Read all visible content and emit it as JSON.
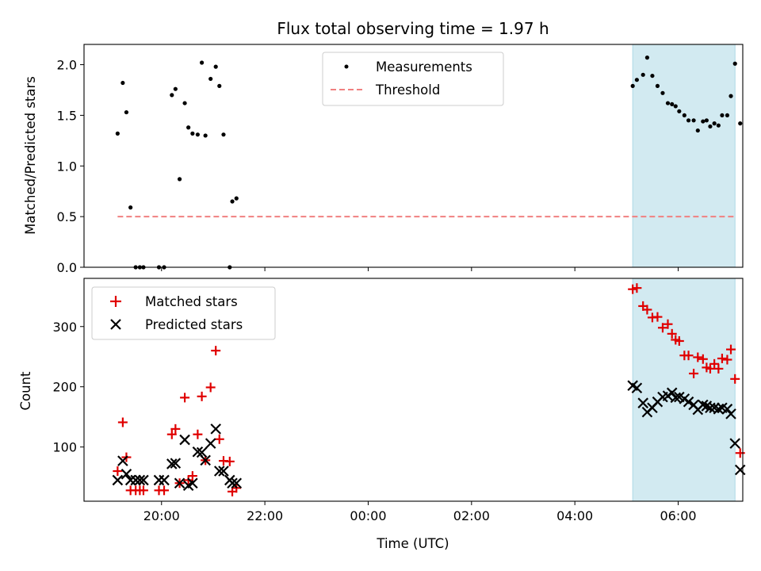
{
  "figure": {
    "title": "Flux total observing time = 1.97 h",
    "xlabel": "Time (UTC)",
    "x_ticks": [
      "20:00",
      "22:00",
      "00:00",
      "02:00",
      "04:00",
      "06:00"
    ]
  },
  "colors": {
    "measurements": "#000000",
    "threshold": "#f08080",
    "matched": "#e00000",
    "predicted": "#000000",
    "highlight": "#add8e6"
  },
  "chart_data": [
    {
      "type": "scatter",
      "title": "Flux total observing time = 1.97 h",
      "xlabel": "",
      "ylabel": "Matched/Predicted stars",
      "x_unit": "hours since 20:00 UTC (axis labels show clock time)",
      "xlim": [
        -1.5,
        11.25
      ],
      "ylim": [
        0,
        2.2
      ],
      "y_ticks": [
        "0.0",
        "0.5",
        "1.0",
        "1.5",
        "2.0"
      ],
      "legend": {
        "position": "upper-center",
        "entries": [
          "Measurements",
          "Threshold"
        ]
      },
      "highlight_span": [
        9.12,
        11.1
      ],
      "threshold": {
        "name": "Threshold",
        "value": 0.5,
        "x_range": [
          -0.85,
          11.1
        ]
      },
      "series": [
        {
          "name": "Measurements",
          "x": [
            -0.85,
            -0.75,
            -0.68,
            -0.6,
            -0.5,
            -0.42,
            -0.35,
            -0.05,
            0.05,
            0.2,
            0.27,
            0.35,
            0.45,
            0.52,
            0.6,
            0.7,
            0.78,
            0.85,
            0.95,
            1.05,
            1.12,
            1.2,
            1.32,
            1.37,
            1.45,
            9.12,
            9.2,
            9.32,
            9.4,
            9.5,
            9.6,
            9.7,
            9.8,
            9.88,
            9.95,
            10.02,
            10.12,
            10.2,
            10.3,
            10.38,
            10.48,
            10.55,
            10.62,
            10.7,
            10.78,
            10.85,
            10.95,
            11.02,
            11.1
          ],
          "y": [
            1.32,
            1.82,
            1.53,
            0.59,
            0.0,
            0.0,
            0.0,
            0.0,
            0.0,
            1.7,
            1.76,
            0.87,
            1.62,
            1.38,
            1.32,
            1.31,
            2.02,
            1.3,
            1.86,
            1.98,
            1.79,
            1.31,
            0.0,
            0.65,
            0.68,
            1.79,
            1.85,
            1.9,
            2.07,
            1.89,
            1.79,
            1.72,
            1.62,
            1.61,
            1.59,
            1.54,
            1.5,
            1.45,
            1.45,
            1.35,
            1.44,
            1.45,
            1.39,
            1.42,
            1.4,
            1.5,
            1.5,
            1.69,
            2.01
          ]
        }
      ],
      "extra_points": {
        "x": [
          11.2
        ],
        "y": [
          1.42
        ]
      }
    },
    {
      "type": "scatter",
      "xlabel": "Time (UTC)",
      "ylabel": "Count",
      "x_unit": "hours since 20:00 UTC (axis labels show clock time)",
      "xlim": [
        -1.5,
        11.25
      ],
      "ylim": [
        10,
        380
      ],
      "y_ticks": [
        "100",
        "200",
        "300"
      ],
      "legend": {
        "position": "upper-left",
        "entries": [
          "Matched stars",
          "Predicted stars"
        ]
      },
      "highlight_span": [
        9.12,
        11.1
      ],
      "series": [
        {
          "name": "Matched stars",
          "x": [
            -0.85,
            -0.75,
            -0.68,
            -0.6,
            -0.5,
            -0.42,
            -0.35,
            -0.05,
            0.05,
            0.2,
            0.27,
            0.35,
            0.45,
            0.52,
            0.6,
            0.7,
            0.78,
            0.85,
            0.95,
            1.05,
            1.12,
            1.2,
            1.32,
            1.37,
            1.45,
            9.12,
            9.2,
            9.32,
            9.4,
            9.5,
            9.6,
            9.7,
            9.8,
            9.88,
            9.95,
            10.02,
            10.12,
            10.2,
            10.3,
            10.38,
            10.48,
            10.55,
            10.62,
            10.7,
            10.78,
            10.85,
            10.95,
            11.02,
            11.1,
            11.2
          ],
          "y": [
            60,
            141,
            83,
            28,
            28,
            28,
            28,
            28,
            28,
            121,
            130,
            40,
            182,
            45,
            52,
            121,
            184,
            78,
            199,
            260,
            113,
            77,
            76,
            26,
            32,
            362,
            364,
            334,
            328,
            315,
            316,
            298,
            304,
            288,
            278,
            276,
            252,
            252,
            222,
            249,
            246,
            232,
            230,
            238,
            230,
            247,
            245,
            262,
            213,
            90
          ]
        },
        {
          "name": "Predicted stars",
          "x": [
            -0.85,
            -0.75,
            -0.68,
            -0.6,
            -0.5,
            -0.42,
            -0.35,
            -0.05,
            0.05,
            0.2,
            0.27,
            0.35,
            0.45,
            0.52,
            0.6,
            0.7,
            0.78,
            0.85,
            0.95,
            1.05,
            1.12,
            1.2,
            1.32,
            1.37,
            1.45,
            9.12,
            9.2,
            9.32,
            9.4,
            9.5,
            9.6,
            9.7,
            9.8,
            9.88,
            9.95,
            10.02,
            10.12,
            10.2,
            10.3,
            10.38,
            10.48,
            10.55,
            10.62,
            10.7,
            10.78,
            10.85,
            10.95,
            11.02,
            11.1
          ],
          "y": [
            45,
            77,
            55,
            45,
            45,
            45,
            45,
            45,
            45,
            72,
            73,
            40,
            112,
            36,
            40,
            92,
            91,
            78,
            106,
            130,
            60,
            60,
            45,
            40,
            40,
            202,
            198,
            173,
            158,
            165,
            175,
            183,
            185,
            190,
            182,
            183,
            180,
            175,
            170,
            162,
            170,
            168,
            165,
            165,
            163,
            165,
            163,
            155,
            106
          ]
        }
      ],
      "extra_points": {
        "x": [
          11.2
        ],
        "y": [
          62
        ]
      }
    }
  ]
}
